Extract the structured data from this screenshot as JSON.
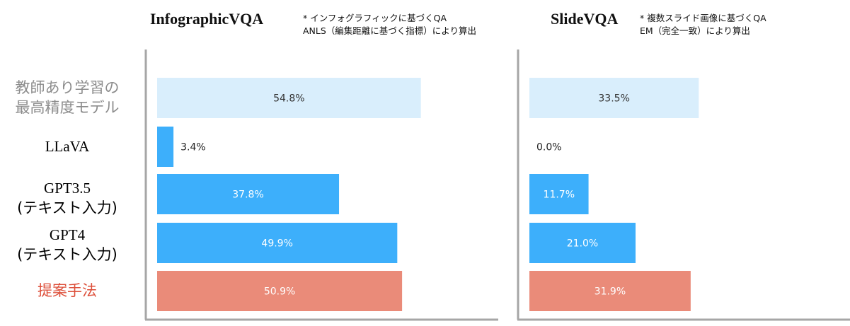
{
  "chart_data": [
    {
      "type": "bar",
      "orientation": "horizontal",
      "title": "InfographicVQA",
      "notes": [
        "* インフォグラフィックに基づくQA",
        "ANLS（編集距離に基づく指標）により算出"
      ],
      "categories": [
        "教師あり学習の\n最高精度モデル",
        "LLaVA",
        "GPT3.5\n(テキスト入力)",
        "GPT4\n(テキスト入力)",
        "提案手法"
      ],
      "values": [
        54.8,
        3.4,
        37.8,
        49.9,
        50.9
      ],
      "value_labels": [
        "54.8%",
        "3.4%",
        "37.8%",
        "49.9%",
        "50.9%"
      ],
      "xlim": [
        0,
        70
      ],
      "grid": false
    },
    {
      "type": "bar",
      "orientation": "horizontal",
      "title": "SlideVQA",
      "notes": [
        "* 複数スライド画像に基づくQA",
        "EM（完全一致）により算出"
      ],
      "categories": [
        "教師あり学習の\n最高精度モデル",
        "LLaVA",
        "GPT3.5\n(テキスト入力)",
        "GPT4\n(テキスト入力)",
        "提案手法"
      ],
      "values": [
        33.5,
        0.0,
        11.7,
        21.0,
        31.9
      ],
      "value_labels": [
        "33.5%",
        "0.0%",
        "11.7%",
        "21.0%",
        "31.9%"
      ],
      "xlim": [
        0,
        63
      ],
      "grid": false
    }
  ],
  "row_labels": [
    {
      "line1": "教師あり学習の",
      "line2": "最高精度モデル"
    },
    {
      "line1": "LLaVA",
      "line2": ""
    },
    {
      "line1": "GPT3.5",
      "line2": "(テキスト入力)"
    },
    {
      "line1": "GPT4",
      "line2": "(テキスト入力)"
    },
    {
      "line1": "提案手法",
      "line2": ""
    }
  ],
  "colors": {
    "supervised": "#d9eefc",
    "baseline": "#3daffb",
    "proposed": "#ea8b79",
    "axis": "#a6a6a6",
    "label_dark": "#333333",
    "label_light": "#ffffff",
    "label_outside": "#222222"
  }
}
